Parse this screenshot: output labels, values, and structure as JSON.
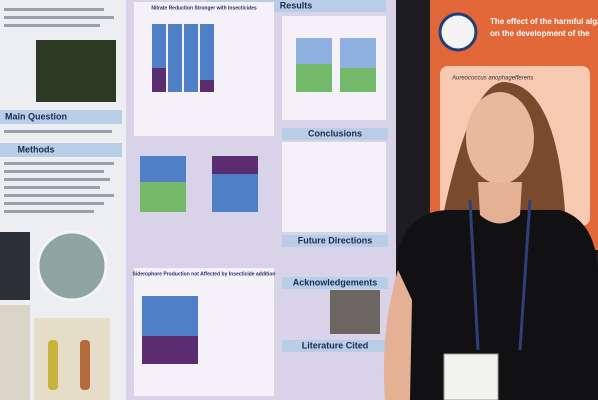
{
  "left_poster": {
    "sections": [
      "Main Question",
      "Methods"
    ]
  },
  "center_poster": {
    "header": "Results",
    "panels": [
      "Nitrate Reduction Stronger with Insecticides",
      "Siderophore Production not Affected by Insecticide addition"
    ],
    "sections": [
      "Conclusions",
      "Future Directions",
      "Acknowledgements",
      "Literature Cited"
    ]
  },
  "right_poster": {
    "title": "The effect of the harmful algal species",
    "subtitle": "on the development of the",
    "box": "Aureococcus anophagefferens"
  }
}
